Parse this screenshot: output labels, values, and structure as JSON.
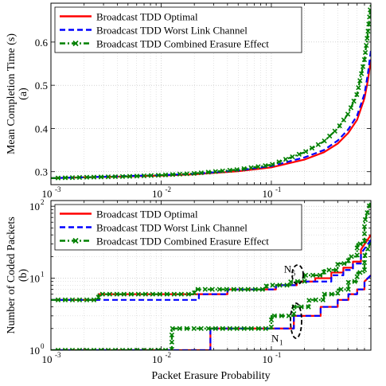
{
  "chart_data": [
    {
      "type": "line",
      "ylabel": "Mean Completion Time (s)",
      "panel_label": "(a)",
      "xlabel": "",
      "xscale": "log",
      "xlim": [
        0.001,
        0.8
      ],
      "ylim": [
        0.27,
        0.69
      ],
      "yticks": [
        0.3,
        0.4,
        0.5,
        0.6
      ],
      "ytick_labels": [
        "0.3",
        "0.4",
        "0.5",
        "0.6"
      ],
      "xtick_labels": [
        "10",
        "10",
        "10"
      ],
      "xtick_exponents": [
        "-3",
        "-2",
        "-1"
      ],
      "grid": true,
      "legend_position": "top-left",
      "series": [
        {
          "name": "Broadcast TDD Optimal",
          "color": "#ff0000",
          "style": "solid",
          "x": [
            0.001,
            0.002,
            0.005,
            0.01,
            0.02,
            0.05,
            0.1,
            0.2,
            0.3,
            0.4,
            0.5,
            0.6,
            0.7,
            0.75,
            0.8
          ],
          "y": [
            0.285,
            0.287,
            0.289,
            0.291,
            0.294,
            0.301,
            0.31,
            0.328,
            0.345,
            0.365,
            0.39,
            0.42,
            0.47,
            0.51,
            0.56
          ]
        },
        {
          "name": "Broadcast TDD Worst Link Channel",
          "color": "#0000ff",
          "style": "dashed",
          "x": [
            0.001,
            0.002,
            0.005,
            0.01,
            0.02,
            0.05,
            0.1,
            0.2,
            0.3,
            0.4,
            0.5,
            0.6,
            0.7,
            0.75,
            0.8
          ],
          "y": [
            0.285,
            0.287,
            0.29,
            0.292,
            0.295,
            0.303,
            0.313,
            0.333,
            0.35,
            0.372,
            0.398,
            0.43,
            0.48,
            0.525,
            0.58
          ]
        },
        {
          "name": "Broadcast TDD Combined Erasure Effect",
          "color": "#008000",
          "style": "dash-dot",
          "marker": "x",
          "x": [
            0.001,
            0.002,
            0.005,
            0.01,
            0.02,
            0.05,
            0.1,
            0.2,
            0.3,
            0.4,
            0.5,
            0.6,
            0.7,
            0.75,
            0.8
          ],
          "y": [
            0.285,
            0.287,
            0.289,
            0.292,
            0.296,
            0.305,
            0.316,
            0.345,
            0.37,
            0.4,
            0.435,
            0.48,
            0.56,
            0.62,
            0.69
          ]
        }
      ]
    },
    {
      "type": "line",
      "ylabel": "Number of Coded Packets",
      "panel_label": "(b)",
      "xlabel": "Packet Erasure Probability",
      "xscale": "log",
      "yscale": "log",
      "xlim": [
        0.001,
        0.8
      ],
      "ylim": [
        1,
        120
      ],
      "ytick_labels": [
        "10",
        "10",
        "10"
      ],
      "ytick_exponents": [
        "0",
        "1",
        "2"
      ],
      "xtick_labels": [
        "10",
        "10",
        "10"
      ],
      "xtick_exponents": [
        "-3",
        "-2",
        "-1"
      ],
      "grid": true,
      "legend_position": "top-left",
      "annotations": [
        {
          "text": "N",
          "subscript": "5",
          "x": 0.13,
          "y": 12
        },
        {
          "text": "N",
          "subscript": "1",
          "x": 0.1,
          "y": 1.3
        }
      ],
      "series": [
        {
          "name": "Broadcast TDD Optimal",
          "color": "#ff0000",
          "style": "solid",
          "x": [
            0.001,
            0.0128,
            0.0128,
            0.028,
            0.028,
            0.16,
            0.16,
            0.28,
            0.28,
            0.4,
            0.4,
            0.5,
            0.5,
            0.6,
            0.6,
            0.7,
            0.7,
            0.8
          ],
          "y": [
            1,
            1,
            1,
            1,
            2,
            2,
            3,
            3,
            4,
            4,
            5,
            5,
            6,
            6,
            7,
            7,
            9,
            11
          ]
        },
        {
          "name": "Broadcast TDD Worst Link Channel",
          "color": "#0000ff",
          "style": "dashed",
          "x": [
            0.001,
            0.0128,
            0.0128,
            0.028,
            0.028,
            0.16,
            0.16,
            0.28,
            0.28,
            0.4,
            0.4,
            0.5,
            0.5,
            0.6,
            0.6,
            0.7,
            0.7,
            0.8
          ],
          "y": [
            1,
            1,
            1,
            1,
            2,
            2,
            3,
            3,
            4,
            4,
            5,
            5,
            6,
            6,
            7,
            7,
            9,
            11
          ]
        },
        {
          "name": "Broadcast TDD Combined Erasure Effect",
          "color": "#008000",
          "style": "dash-dot",
          "marker": "x",
          "x": [
            0.001,
            0.0125,
            0.0125,
            0.1,
            0.1,
            0.16,
            0.16,
            0.22,
            0.22,
            0.3,
            0.3,
            0.4,
            0.4,
            0.5,
            0.5,
            0.6,
            0.6,
            0.7,
            0.7,
            0.8
          ],
          "y": [
            1,
            1,
            2,
            2,
            3,
            3,
            4,
            4,
            5,
            5,
            6,
            6,
            7,
            7,
            9,
            9,
            12,
            12,
            20,
            32
          ]
        },
        {
          "name": "Broadcast TDD Optimal",
          "color": "#ff0000",
          "style": "solid",
          "x": [
            0.001,
            0.0027,
            0.0027,
            0.022,
            0.022,
            0.04,
            0.04,
            0.11,
            0.11,
            0.17,
            0.17,
            0.25,
            0.25,
            0.35,
            0.35,
            0.45,
            0.45,
            0.55,
            0.55,
            0.65,
            0.65,
            0.8
          ],
          "y": [
            5,
            5,
            6,
            6,
            6,
            6,
            7,
            7,
            8,
            8,
            9,
            9,
            10,
            10,
            12,
            12,
            14,
            14,
            17,
            17,
            25,
            40
          ]
        },
        {
          "name": "Broadcast TDD Worst Link Channel",
          "color": "#0000ff",
          "style": "dashed",
          "x": [
            0.001,
            0.0027,
            0.0027,
            0.022,
            0.022,
            0.04,
            0.04,
            0.11,
            0.11,
            0.17,
            0.17,
            0.25,
            0.25,
            0.35,
            0.35,
            0.45,
            0.45,
            0.55,
            0.55,
            0.65,
            0.65,
            0.8
          ],
          "y": [
            5,
            5,
            5,
            5,
            6,
            6,
            7,
            7,
            8,
            8,
            9,
            9,
            9,
            9,
            11,
            11,
            13,
            13,
            16,
            16,
            22,
            34
          ]
        },
        {
          "name": "Broadcast TDD Combined Erasure Effect",
          "color": "#008000",
          "style": "dash-dot",
          "marker": "x",
          "x": [
            0.001,
            0.0027,
            0.0027,
            0.02,
            0.02,
            0.04,
            0.04,
            0.09,
            0.09,
            0.15,
            0.15,
            0.2,
            0.2,
            0.3,
            0.3,
            0.4,
            0.4,
            0.5,
            0.5,
            0.6,
            0.6,
            0.7,
            0.7,
            0.8
          ],
          "y": [
            5,
            5,
            6,
            6,
            7,
            7,
            7,
            7,
            8,
            8,
            9,
            9,
            11,
            11,
            13,
            13,
            16,
            16,
            20,
            20,
            30,
            30,
            60,
            120
          ]
        }
      ]
    }
  ]
}
